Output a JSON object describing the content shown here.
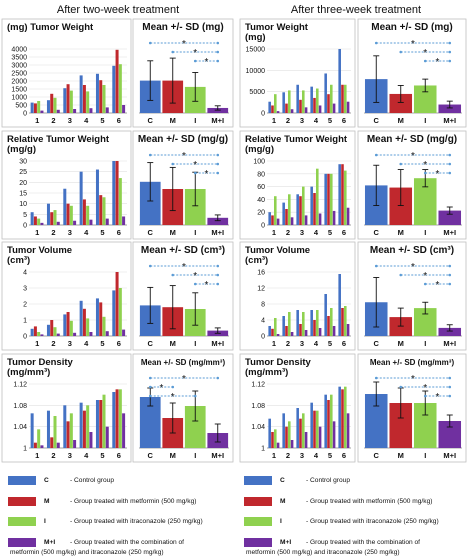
{
  "headers": {
    "left": "After two-week treatment",
    "right": "After three-week treatment"
  },
  "colors": {
    "C": "#4472c4",
    "M": "#c0282d",
    "I": "#8fd14f",
    "MI": "#7030a0",
    "frame": "#bfbfbf",
    "grid": "#e0e0e0",
    "arrow": "#5b9bd5"
  },
  "legend": [
    {
      "code": "C",
      "text": "Control group"
    },
    {
      "code": "M",
      "text": "Group treated with metformin (500 mg/kg)"
    },
    {
      "code": "I",
      "text": "Group treated with itraconazole (250 mg/kg)"
    },
    {
      "code": "M+I",
      "text": "Group treated with the combination of",
      "text2": "metformin (500 mg/kg) and itraconazole (250 mg/kg)"
    }
  ],
  "chart_data": [
    {
      "type": "bar",
      "week": "two-week",
      "title": "(mg) Tumor Weight",
      "title_lines": [
        "(mg) Tumor Weight"
      ],
      "categories": [
        "1",
        "2",
        "3",
        "4",
        "5",
        "6"
      ],
      "ylim": [
        0,
        4000
      ],
      "yticks": [
        "0",
        "500",
        "1000",
        "1500",
        "2000",
        "2500",
        "3000",
        "3500",
        "4000"
      ],
      "series": [
        {
          "name": "C",
          "values": [
            650,
            800,
            1550,
            2350,
            2450,
            2950
          ]
        },
        {
          "name": "M",
          "values": [
            600,
            1200,
            1800,
            1750,
            2050,
            3950
          ]
        },
        {
          "name": "I",
          "values": [
            750,
            950,
            1400,
            1350,
            1750,
            3050
          ]
        },
        {
          "name": "M+I",
          "values": [
            150,
            200,
            250,
            300,
            350,
            500
          ]
        }
      ]
    },
    {
      "type": "bar",
      "week": "two-week",
      "title": "Mean +/- SD (mg)",
      "categories": [
        "C",
        "M",
        "I",
        "M+I"
      ],
      "ylim": [
        0,
        4000
      ],
      "series": [
        {
          "name": "Mean",
          "values": [
            1800,
            1800,
            1450,
            280
          ],
          "sd": [
            1100,
            1250,
            800,
            120
          ]
        }
      ],
      "significance": [
        {
          "from": "C",
          "to": "M+I",
          "label": "*"
        },
        {
          "from": "M",
          "to": "M+I",
          "label": "*"
        },
        {
          "from": "I",
          "to": "M+I",
          "label": "*"
        }
      ]
    },
    {
      "type": "bar",
      "week": "three-week",
      "title": "Tumor Weight (mg)",
      "title_lines": [
        "Tumor Weight",
        "(mg)"
      ],
      "categories": [
        "1",
        "2",
        "3",
        "4",
        "5",
        "6"
      ],
      "ylim": [
        0,
        17000
      ],
      "yticks": [
        "0",
        "5000",
        "10000",
        "15000"
      ],
      "series": [
        {
          "name": "C",
          "values": [
            3000,
            5500,
            7500,
            7000,
            10500,
            17000
          ]
        },
        {
          "name": "M",
          "values": [
            2000,
            2500,
            3500,
            4000,
            5000,
            7500
          ]
        },
        {
          "name": "I",
          "values": [
            5000,
            6000,
            6000,
            6500,
            7500,
            7500
          ]
        },
        {
          "name": "M+I",
          "values": [
            500,
            1000,
            1500,
            2000,
            2500,
            3000
          ]
        }
      ]
    },
    {
      "type": "bar",
      "week": "three-week",
      "title": "Mean +/- SD (mg)",
      "categories": [
        "C",
        "M",
        "I",
        "M+I"
      ],
      "ylim": [
        0,
        17000
      ],
      "series": [
        {
          "name": "Mean",
          "values": [
            8000,
            4500,
            6500,
            2000
          ],
          "sd": [
            5500,
            2000,
            1500,
            800
          ]
        }
      ],
      "significance": [
        {
          "from": "C",
          "to": "M+I",
          "label": "*"
        },
        {
          "from": "M",
          "to": "M+I",
          "label": "*"
        },
        {
          "from": "I",
          "to": "M+I",
          "label": "*"
        }
      ]
    },
    {
      "type": "bar",
      "week": "two-week",
      "title": "Relative Tumor Weight (mg/g)",
      "title_lines": [
        "Relative Tumor Weight",
        "(mg/g)"
      ],
      "categories": [
        "1",
        "2",
        "3",
        "4",
        "5",
        "6"
      ],
      "ylim": [
        0,
        30
      ],
      "yticks": [
        "0",
        "5",
        "10",
        "15",
        "20",
        "25",
        "30"
      ],
      "series": [
        {
          "name": "C",
          "values": [
            6,
            10,
            17,
            25,
            26,
            30
          ]
        },
        {
          "name": "M",
          "values": [
            4,
            6,
            10,
            12,
            14,
            30
          ]
        },
        {
          "name": "I",
          "values": [
            3,
            7,
            9,
            9,
            13,
            22
          ]
        },
        {
          "name": "M+I",
          "values": [
            1,
            1.5,
            2,
            2.5,
            3,
            4
          ]
        }
      ]
    },
    {
      "type": "bar",
      "week": "two-week",
      "title": "Mean +/- SD (mg/g)",
      "categories": [
        "C",
        "M",
        "I",
        "M+I"
      ],
      "ylim": [
        0,
        30
      ],
      "series": [
        {
          "name": "Mean",
          "values": [
            18,
            15,
            15,
            3
          ],
          "sd": [
            8,
            9,
            7,
            1.2
          ]
        }
      ],
      "significance": [
        {
          "from": "C",
          "to": "M+I",
          "label": "*"
        },
        {
          "from": "M",
          "to": "M+I",
          "label": "*"
        },
        {
          "from": "I",
          "to": "M+I",
          "label": "*"
        }
      ]
    },
    {
      "type": "bar",
      "week": "three-week",
      "title": "Relative Tumor Weight (mg/g)",
      "title_lines": [
        "Relative Tumor Weight",
        "(mg/g)"
      ],
      "categories": [
        "1",
        "2",
        "3",
        "4",
        "5",
        "6"
      ],
      "ylim": [
        0,
        100
      ],
      "yticks": [
        "0",
        "20",
        "40",
        "60",
        "80",
        "100"
      ],
      "series": [
        {
          "name": "C",
          "values": [
            20,
            35,
            48,
            60,
            80,
            95
          ]
        },
        {
          "name": "M",
          "values": [
            15,
            25,
            45,
            50,
            80,
            95
          ]
        },
        {
          "name": "I",
          "values": [
            45,
            48,
            60,
            88,
            80,
            85
          ]
        },
        {
          "name": "M+I",
          "values": [
            10,
            12,
            15,
            18,
            22,
            27
          ]
        }
      ]
    },
    {
      "type": "bar",
      "week": "three-week",
      "title": "Mean +/- SD (mg/g)",
      "categories": [
        "C",
        "M",
        "I",
        "M+I"
      ],
      "ylim": [
        0,
        100
      ],
      "series": [
        {
          "name": "Mean",
          "values": [
            55,
            52,
            65,
            20
          ],
          "sd": [
            28,
            25,
            12,
            5
          ]
        }
      ],
      "significance": [
        {
          "from": "C",
          "to": "M+I",
          "label": "*"
        },
        {
          "from": "M",
          "to": "M+I",
          "label": "*"
        },
        {
          "from": "I",
          "to": "M+I",
          "label": "*"
        }
      ]
    },
    {
      "type": "bar",
      "week": "two-week",
      "title": "Tumor Volume (cm³)",
      "title_lines": [
        "Tumor Volume",
        "(cm³)"
      ],
      "categories": [
        "1",
        "2",
        "3",
        "4",
        "5",
        "6"
      ],
      "ylim": [
        0,
        4
      ],
      "yticks": [
        "0",
        "1",
        "2",
        "3",
        "4"
      ],
      "series": [
        {
          "name": "C",
          "values": [
            0.45,
            0.7,
            1.35,
            2.2,
            2.35,
            2.85
          ]
        },
        {
          "name": "M",
          "values": [
            0.6,
            1.0,
            1.5,
            1.7,
            2.1,
            4.0
          ]
        },
        {
          "name": "I",
          "values": [
            0.25,
            0.55,
            0.95,
            1.1,
            1.2,
            3.0
          ]
        },
        {
          "name": "M+I",
          "values": [
            0.1,
            0.15,
            0.2,
            0.25,
            0.3,
            0.4
          ]
        }
      ]
    },
    {
      "type": "bar",
      "week": "two-week",
      "title": "Mean +/- SD (cm³)",
      "categories": [
        "C",
        "M",
        "I",
        "M+I"
      ],
      "ylim": [
        0,
        4
      ],
      "series": [
        {
          "name": "Mean",
          "values": [
            1.7,
            1.6,
            1.5,
            0.3
          ],
          "sd": [
            1.0,
            1.2,
            0.9,
            0.15
          ]
        }
      ],
      "significance": [
        {
          "from": "C",
          "to": "M+I",
          "label": "*"
        },
        {
          "from": "M",
          "to": "M+I",
          "label": "*"
        },
        {
          "from": "I",
          "to": "M+I",
          "label": "*"
        }
      ]
    },
    {
      "type": "bar",
      "week": "three-week",
      "title": "Tumor Volume (cm³)",
      "title_lines": [
        "Tumor Volume",
        "(cm³)"
      ],
      "categories": [
        "1",
        "2",
        "3",
        "4",
        "5",
        "6"
      ],
      "ylim": [
        0,
        16
      ],
      "yticks": [
        "0",
        "4",
        "8",
        "12",
        "16"
      ],
      "series": [
        {
          "name": "C",
          "values": [
            2.5,
            5.0,
            6.5,
            6.5,
            10.5,
            15.5
          ]
        },
        {
          "name": "M",
          "values": [
            1.8,
            2.5,
            3.0,
            4.0,
            5.0,
            7.0
          ]
        },
        {
          "name": "I",
          "values": [
            4.5,
            6.0,
            6.0,
            6.5,
            7.0,
            7.5
          ]
        },
        {
          "name": "M+I",
          "values": [
            0.5,
            1.0,
            1.5,
            2.0,
            2.5,
            3.0
          ]
        }
      ]
    },
    {
      "type": "bar",
      "week": "three-week",
      "title": "Mean +/- SD (cm³)",
      "categories": [
        "C",
        "M",
        "I",
        "M+I"
      ],
      "ylim": [
        0,
        16
      ],
      "series": [
        {
          "name": "Mean",
          "values": [
            7.5,
            4.2,
            6.2,
            1.8
          ],
          "sd": [
            5.5,
            2.0,
            1.3,
            0.7
          ]
        }
      ],
      "significance": [
        {
          "from": "C",
          "to": "M+I",
          "label": "*"
        },
        {
          "from": "M",
          "to": "M+I",
          "label": "*"
        },
        {
          "from": "I",
          "to": "M+I",
          "label": "*"
        }
      ]
    },
    {
      "type": "bar",
      "week": "two-week",
      "title": "Tumor Density (mg/mm³)",
      "title_lines": [
        "Tumor Density",
        "(mg/mm³)"
      ],
      "categories": [
        "1",
        "2",
        "3",
        "4",
        "5",
        "6"
      ],
      "ylim": [
        1.0,
        1.12
      ],
      "yticks": [
        "1",
        "1.04",
        "1.08",
        "1.12"
      ],
      "series": [
        {
          "name": "C",
          "values": [
            1.065,
            1.07,
            1.08,
            1.085,
            1.09,
            1.105
          ]
        },
        {
          "name": "M",
          "values": [
            1.01,
            1.02,
            1.05,
            1.07,
            1.09,
            1.11
          ]
        },
        {
          "name": "I",
          "values": [
            1.035,
            1.06,
            1.065,
            1.08,
            1.1,
            1.11
          ]
        },
        {
          "name": "M+I",
          "values": [
            1.005,
            1.01,
            1.015,
            1.03,
            1.04,
            1.065
          ]
        }
      ]
    },
    {
      "type": "bar",
      "week": "two-week",
      "title": "Mean +/- SD (mg/mm³)",
      "categories": [
        "C",
        "M",
        "I",
        "M+I"
      ],
      "ylim": [
        1.0,
        1.12
      ],
      "series": [
        {
          "name": "Mean",
          "values": [
            1.085,
            1.05,
            1.07,
            1.025
          ],
          "sd": [
            0.015,
            0.025,
            0.025,
            0.015
          ]
        }
      ],
      "significance": [
        {
          "from": "C",
          "to": "M+I",
          "label": "*"
        },
        {
          "from": "C",
          "to": "M",
          "label": "*"
        },
        {
          "from": "C",
          "to": "I",
          "label": "*"
        }
      ]
    },
    {
      "type": "bar",
      "week": "three-week",
      "title": "Tumor Density (mg/mm³)",
      "title_lines": [
        "Tumor Density",
        "(mg/mm³)"
      ],
      "categories": [
        "1",
        "2",
        "3",
        "4",
        "5",
        "6"
      ],
      "ylim": [
        1.0,
        1.12
      ],
      "yticks": [
        "1",
        "1.04",
        "1.08",
        "1.12"
      ],
      "series": [
        {
          "name": "C",
          "values": [
            1.055,
            1.065,
            1.075,
            1.085,
            1.1,
            1.115
          ]
        },
        {
          "name": "M",
          "values": [
            1.03,
            1.04,
            1.055,
            1.07,
            1.09,
            1.11
          ]
        },
        {
          "name": "I",
          "values": [
            1.035,
            1.05,
            1.065,
            1.07,
            1.1,
            1.115
          ]
        },
        {
          "name": "M+I",
          "values": [
            1.01,
            1.015,
            1.03,
            1.04,
            1.05,
            1.065
          ]
        }
      ]
    },
    {
      "type": "bar",
      "week": "three-week",
      "title": "Mean +/- SD (mg/mm³)",
      "categories": [
        "C",
        "M",
        "I",
        "M+I"
      ],
      "ylim": [
        1.0,
        1.12
      ],
      "series": [
        {
          "name": "Mean",
          "values": [
            1.09,
            1.075,
            1.075,
            1.045
          ],
          "sd": [
            0.02,
            0.025,
            0.02,
            0.01
          ]
        }
      ],
      "significance": [
        {
          "from": "C",
          "to": "M+I",
          "label": "*"
        },
        {
          "from": "M",
          "to": "M+I",
          "label": "*"
        },
        {
          "from": "I",
          "to": "M+I",
          "label": "*"
        }
      ]
    }
  ]
}
